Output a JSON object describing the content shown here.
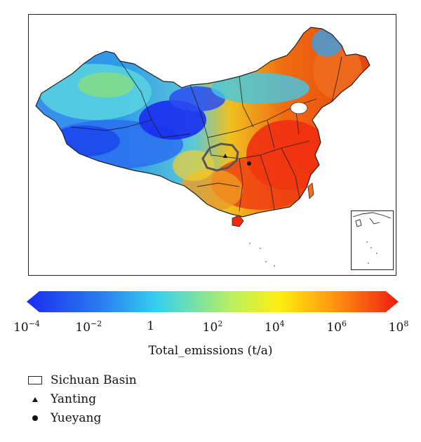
{
  "map": {
    "subject_icon": "china-emissions-map-icon",
    "colors": {
      "low": "#1a2cf0",
      "cyan": "#35d0f0",
      "mid": "#b8f060",
      "yellow": "#ffee10",
      "orange": "#ff9a10",
      "high": "#f01a10"
    }
  },
  "colorbar": {
    "ticks": [
      {
        "base": "10",
        "exp": "−4"
      },
      {
        "base": "10",
        "exp": "−2"
      },
      {
        "base": "1",
        "exp": ""
      },
      {
        "base": "10",
        "exp": "2"
      },
      {
        "base": "10",
        "exp": "4"
      },
      {
        "base": "10",
        "exp": "6"
      },
      {
        "base": "10",
        "exp": "8"
      }
    ],
    "label": "Total_emissions (t/a)"
  },
  "legend": {
    "items": [
      {
        "label": "Sichuan Basin",
        "icon": "rectangle-outline-icon"
      },
      {
        "label": "Yanting",
        "icon": "triangle-icon"
      },
      {
        "label": "Yueyang",
        "icon": "circle-icon"
      }
    ]
  }
}
